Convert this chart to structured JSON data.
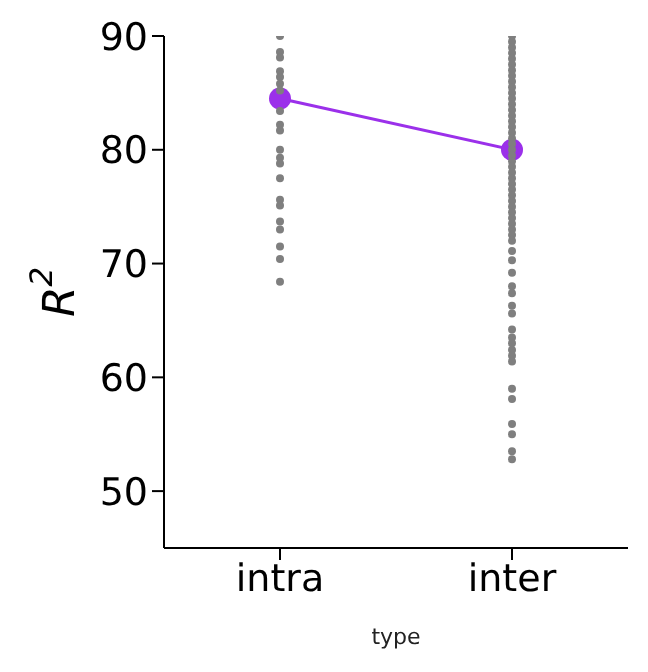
{
  "chart_data": {
    "type": "scatter",
    "xlabel": "type",
    "ylabel": "R$^{2}$",
    "categories": [
      "intra",
      "inter"
    ],
    "ylim": [
      45,
      90
    ],
    "yticks": [
      50,
      60,
      70,
      80,
      90
    ],
    "grid": false,
    "legend": false,
    "series": [
      {
        "type": "line",
        "color": "#9b30ea",
        "marker": "circle",
        "values": [
          84.5,
          80
        ]
      },
      {
        "color": "#7f7f7f",
        "x": [
          "intra",
          "intra",
          "intra",
          "intra",
          "intra",
          "intra",
          "intra",
          "intra",
          "intra",
          "intra",
          "intra",
          "intra",
          "intra",
          "intra",
          "intra",
          "intra",
          "intra",
          "intra",
          "intra",
          "intra",
          "intra"
        ],
        "values": [
          90,
          88.6,
          88.1,
          86.9,
          86.4,
          85.8,
          85.2,
          83.4,
          82.2,
          81.7,
          80,
          79.3,
          78.8,
          77.5,
          75.6,
          75.1,
          73.7,
          73,
          71.5,
          70.4,
          68.4
        ]
      },
      {
        "color": "#7f7f7f",
        "x": [
          "inter",
          "inter",
          "inter",
          "inter",
          "inter",
          "inter",
          "inter",
          "inter",
          "inter",
          "inter",
          "inter",
          "inter",
          "inter",
          "inter",
          "inter",
          "inter",
          "inter",
          "inter",
          "inter",
          "inter",
          "inter",
          "inter",
          "inter",
          "inter",
          "inter",
          "inter",
          "inter",
          "inter",
          "inter",
          "inter",
          "inter",
          "inter",
          "inter",
          "inter",
          "inter",
          "inter",
          "inter",
          "inter",
          "inter",
          "inter",
          "inter",
          "inter",
          "inter",
          "inter",
          "inter",
          "inter",
          "inter",
          "inter",
          "inter",
          "inter",
          "inter",
          "inter",
          "inter",
          "inter",
          "inter",
          "inter"
        ],
        "values": [
          90,
          89.5,
          89,
          88.5,
          88,
          87.5,
          87,
          86.5,
          86,
          85.5,
          85,
          84.5,
          84,
          83.5,
          83,
          82.5,
          82,
          81.5,
          81,
          80.5,
          80,
          79.5,
          79,
          78.5,
          78,
          77.5,
          77,
          76.5,
          76,
          75.5,
          75,
          74.5,
          74,
          73.5,
          73,
          72.5,
          72,
          71.1,
          70.3,
          69.2,
          68,
          67.4,
          66.3,
          65.6,
          64.2,
          63.5,
          63,
          62.4,
          61.9,
          61.4,
          59,
          58.1,
          55.9,
          55,
          53.5,
          52.8
        ]
      }
    ]
  }
}
